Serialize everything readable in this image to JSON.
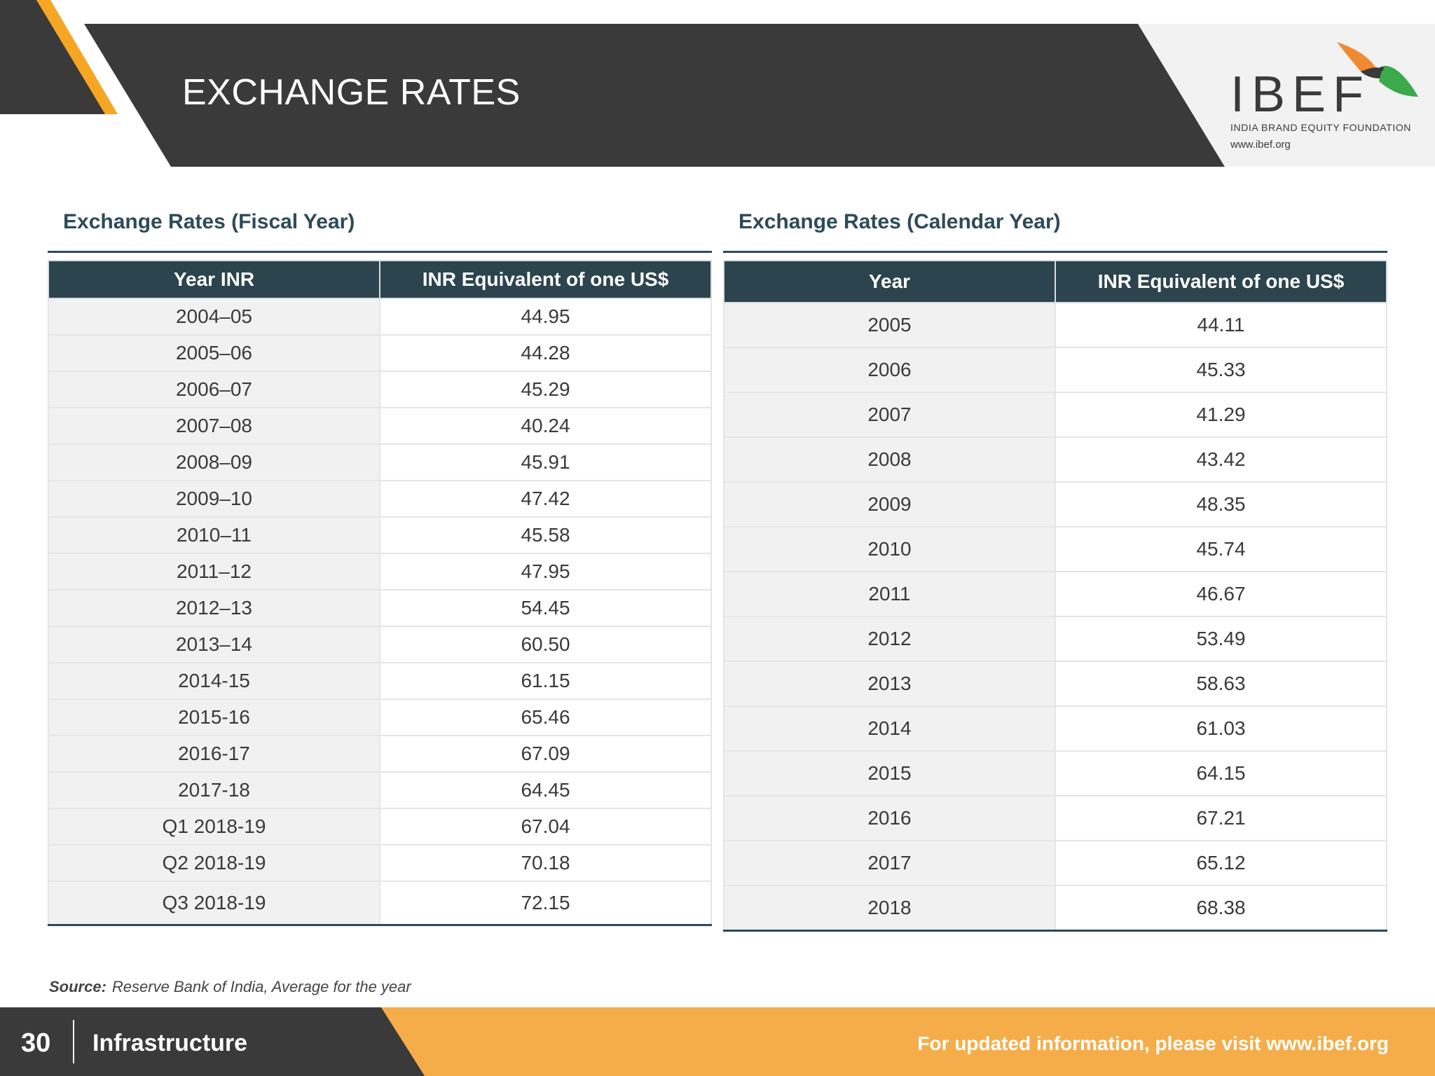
{
  "header": {
    "title": "EXCHANGE RATES",
    "colors": {
      "dark": "#3a3a3a",
      "accent": "#f5a623"
    }
  },
  "logo": {
    "name": "IBEF",
    "tagline": "INDIA BRAND EQUITY FOUNDATION",
    "url": "www.ibef.org"
  },
  "fiscal": {
    "title": "Exchange Rates (Fiscal Year)",
    "columns": [
      "Year INR",
      "INR Equivalent of one US$"
    ],
    "rows": [
      [
        "2004–05",
        "44.95"
      ],
      [
        "2005–06",
        "44.28"
      ],
      [
        "2006–07",
        "45.29"
      ],
      [
        "2007–08",
        "40.24"
      ],
      [
        "2008–09",
        "45.91"
      ],
      [
        "2009–10",
        "47.42"
      ],
      [
        "2010–11",
        "45.58"
      ],
      [
        "2011–12",
        "47.95"
      ],
      [
        "2012–13",
        "54.45"
      ],
      [
        "2013–14",
        "60.50"
      ],
      [
        "2014-15",
        "61.15"
      ],
      [
        "2015-16",
        "65.46"
      ],
      [
        "2016-17",
        "67.09"
      ],
      [
        "2017-18",
        "64.45"
      ],
      [
        "Q1 2018-19",
        "67.04"
      ],
      [
        "Q2 2018-19",
        "70.18"
      ],
      [
        "Q3 2018-19",
        "72.15"
      ]
    ]
  },
  "calendar": {
    "title": "Exchange Rates (Calendar Year)",
    "columns": [
      "Year",
      "INR Equivalent of one US$"
    ],
    "rows": [
      [
        "2005",
        "44.11"
      ],
      [
        "2006",
        "45.33"
      ],
      [
        "2007",
        "41.29"
      ],
      [
        "2008",
        "43.42"
      ],
      [
        "2009",
        "48.35"
      ],
      [
        "2010",
        "45.74"
      ],
      [
        "2011",
        "46.67"
      ],
      [
        "2012",
        "53.49"
      ],
      [
        "2013",
        "58.63"
      ],
      [
        "2014",
        "61.03"
      ],
      [
        "2015",
        "64.15"
      ],
      [
        "2016",
        "67.21"
      ],
      [
        "2017",
        "65.12"
      ],
      [
        "2018",
        "68.38"
      ]
    ]
  },
  "source": {
    "label": "Source:",
    "text": "Reserve Bank of India,  Average for the year"
  },
  "footer": {
    "page_number": "30",
    "section": "Infrastructure",
    "cta": "For updated information, please visit www.ibef.org"
  }
}
